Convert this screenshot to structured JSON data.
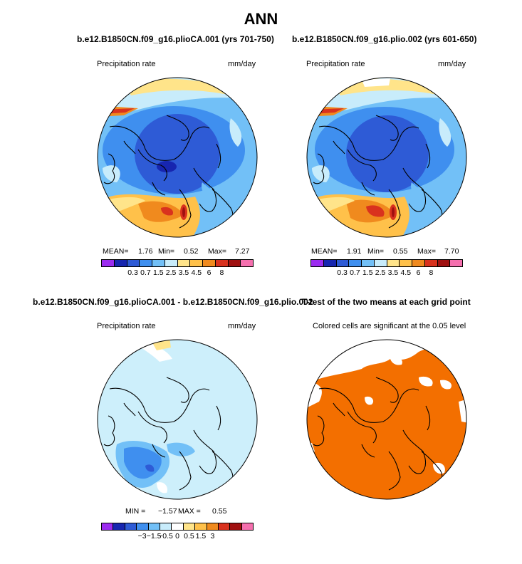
{
  "title": "ANN",
  "colors": {
    "orange_sig": "#f36f00",
    "ocean_light": "#cdeffb",
    "mean_blue": "#3f86dd"
  },
  "panels": [
    {
      "title": "b.e12.B1850CN.f09_g16.plioCA.001 (yrs 701-750)",
      "left_label": "Precipitation rate",
      "right_label": "mm/day",
      "stats": {
        "mean_label": "MEAN=",
        "mean": "1.76",
        "min_label": "Min=",
        "min": "0.52",
        "max_label": "Max=",
        "max": "7.27"
      },
      "colorbar_colors": [
        "#9c2cf0",
        "#1726b0",
        "#2e5bd6",
        "#3f8fef",
        "#72c0f7",
        "#c8ecfb",
        "#ffe48a",
        "#ffc14a",
        "#f08a1e",
        "#d9321e",
        "#a01010",
        "#f56fae"
      ],
      "colorbar_ticks": [
        "0.3",
        "0.7",
        "1.5",
        "2.5",
        "3.5",
        "4.5",
        "6",
        "8"
      ]
    },
    {
      "title": "b.e12.B1850CN.f09_g16.plio.002 (yrs 601-650)",
      "left_label": "Precipitation rate",
      "right_label": "mm/day",
      "stats": {
        "mean_label": "MEAN=",
        "mean": "1.91",
        "min_label": "Min=",
        "min": "0.55",
        "max_label": "Max=",
        "max": "7.70"
      },
      "colorbar_colors": [
        "#9c2cf0",
        "#1726b0",
        "#2e5bd6",
        "#3f8fef",
        "#72c0f7",
        "#c8ecfb",
        "#ffe48a",
        "#ffc14a",
        "#f08a1e",
        "#d9321e",
        "#a01010",
        "#f56fae"
      ],
      "colorbar_ticks": [
        "0.3",
        "0.7",
        "1.5",
        "2.5",
        "3.5",
        "4.5",
        "6",
        "8"
      ]
    },
    {
      "title": "b.e12.B1850CN.f09_g16.plioCA.001 - b.e12.B1850CN.f09_g16.plio.002",
      "left_label": "Precipitation rate",
      "right_label": "mm/day",
      "stats": {
        "min_label": "MIN =",
        "min": "−1.57",
        "max_label": "MAX =",
        "max": "0.55"
      },
      "colorbar_colors": [
        "#9c2cf0",
        "#1726b0",
        "#2e5bd6",
        "#3f8fef",
        "#72c0f7",
        "#c8ecfb",
        "#ffffff",
        "#ffe48a",
        "#ffc14a",
        "#f08a1e",
        "#d9321e",
        "#a01010",
        "#f56fae"
      ],
      "colorbar_ticks": [
        "−3",
        "−1.5",
        "−0.5",
        "0",
        "0.5",
        "1.5",
        "3"
      ]
    },
    {
      "title": "T-test of the two means at each grid point",
      "left_label": "Colored cells are significant at the 0.05 level"
    }
  ],
  "chart_data": [
    {
      "type": "heatmap",
      "projection": "north-polar-stereographic",
      "title": "b.e12.B1850CN.f09_g16.plioCA.001 (yrs 701-750)",
      "variable": "Precipitation rate",
      "units": "mm/day",
      "mean": 1.76,
      "min": 0.52,
      "max": 7.27,
      "levels": [
        0.3,
        0.7,
        1.5,
        2.5,
        3.5,
        4.5,
        6,
        8
      ]
    },
    {
      "type": "heatmap",
      "projection": "north-polar-stereographic",
      "title": "b.e12.B1850CN.f09_g16.plio.002 (yrs 601-650)",
      "variable": "Precipitation rate",
      "units": "mm/day",
      "mean": 1.91,
      "min": 0.55,
      "max": 7.7,
      "levels": [
        0.3,
        0.7,
        1.5,
        2.5,
        3.5,
        4.5,
        6,
        8
      ]
    },
    {
      "type": "heatmap",
      "projection": "north-polar-stereographic",
      "title": "b.e12.B1850CN.f09_g16.plioCA.001 - b.e12.B1850CN.f09_g16.plio.002",
      "variable": "Precipitation rate",
      "units": "mm/day",
      "min": -1.57,
      "max": 0.55,
      "levels": [
        -3,
        -1.5,
        -0.5,
        0,
        0.5,
        1.5,
        3
      ]
    },
    {
      "type": "heatmap",
      "projection": "north-polar-stereographic",
      "title": "T-test of the two means at each grid point",
      "note": "Colored cells are significant at the 0.05 level"
    }
  ]
}
